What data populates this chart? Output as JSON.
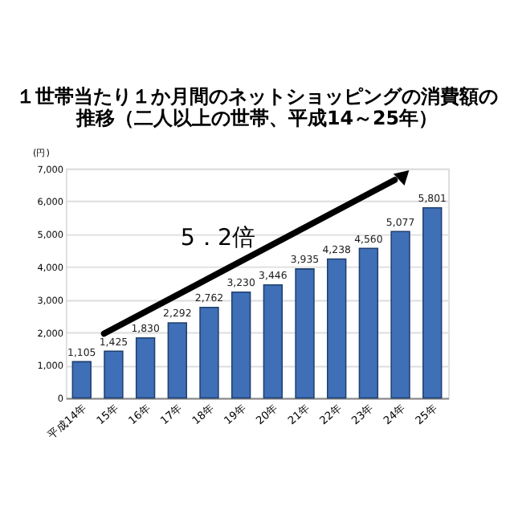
{
  "chart_data": {
    "type": "bar",
    "title": [
      "１世帯当たり１か月間のネットショッピングの消費額の",
      "推移（二人以上の世帯、平成14～25年）"
    ],
    "ylabel": "(円)",
    "categories": [
      "平成14年",
      "15年",
      "16年",
      "17年",
      "18年",
      "19年",
      "20年",
      "21年",
      "22年",
      "23年",
      "24年",
      "25年"
    ],
    "values": [
      1105,
      1425,
      1830,
      2292,
      2762,
      3230,
      3446,
      3935,
      4238,
      4560,
      5077,
      5801
    ],
    "value_labels": [
      "1,105",
      "1,425",
      "1,830",
      "2,292",
      "2,762",
      "3,230",
      "3,446",
      "3,935",
      "4,238",
      "4,560",
      "5,077",
      "5,801"
    ],
    "color": "#3f6fb6",
    "ylim": [
      0,
      7000
    ],
    "yticks": [
      0,
      {
        "value": 1000,
        "label": "1,000"
      },
      {
        "value": 2000,
        "label": "2,000"
      },
      {
        "value": 3000,
        "label": "3,000"
      },
      {
        "value": 4000,
        "label": "4,000"
      },
      {
        "value": 5000,
        "label": "5,000"
      },
      {
        "value": 6000,
        "label": "6,000"
      },
      {
        "value": 7000,
        "label": "7,000"
      }
    ],
    "grid": "y",
    "annotations": [
      "5．2倍"
    ]
  }
}
